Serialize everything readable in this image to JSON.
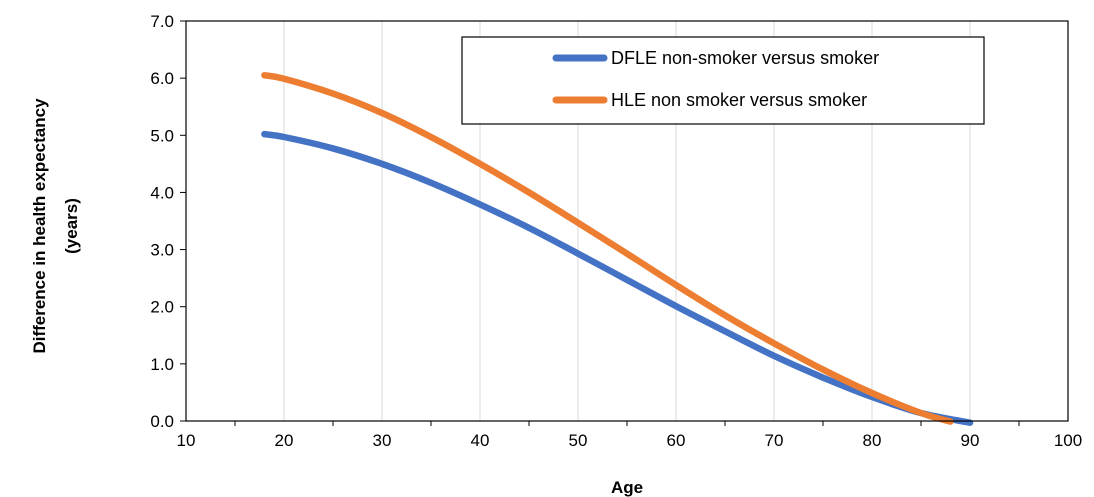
{
  "chart_data": {
    "type": "line",
    "xlabel": "Age",
    "ylabel_line1": "Difference in health expectancy",
    "ylabel_line2": "(years)",
    "xlim": [
      10,
      100
    ],
    "ylim": [
      0,
      7
    ],
    "x_ticks": [
      "10",
      "20",
      "30",
      "40",
      "50",
      "60",
      "70",
      "80",
      "90",
      "100"
    ],
    "y_ticks": [
      "0.0",
      "1.0",
      "2.0",
      "3.0",
      "4.0",
      "5.0",
      "6.0",
      "7.0"
    ],
    "grid": "vertical",
    "legend_position": "top-right",
    "series": [
      {
        "name": "DFLE non-smoker versus smoker",
        "color": "#4472C4",
        "x": [
          18,
          20,
          25,
          30,
          35,
          40,
          45,
          50,
          55,
          60,
          65,
          70,
          75,
          80,
          85,
          90
        ],
        "y": [
          5.02,
          4.97,
          4.77,
          4.5,
          4.17,
          3.79,
          3.38,
          2.93,
          2.47,
          2.01,
          1.57,
          1.14,
          0.76,
          0.42,
          0.14,
          -0.03
        ]
      },
      {
        "name": "HLE non smoker versus smoker",
        "color": "#ED7D31",
        "x": [
          18,
          20,
          25,
          30,
          35,
          40,
          45,
          50,
          55,
          60,
          65,
          70,
          75,
          80,
          85,
          88
        ],
        "y": [
          6.05,
          5.99,
          5.73,
          5.39,
          4.97,
          4.5,
          4.0,
          3.47,
          2.93,
          2.38,
          1.85,
          1.36,
          0.9,
          0.49,
          0.14,
          -0.01
        ]
      }
    ]
  }
}
